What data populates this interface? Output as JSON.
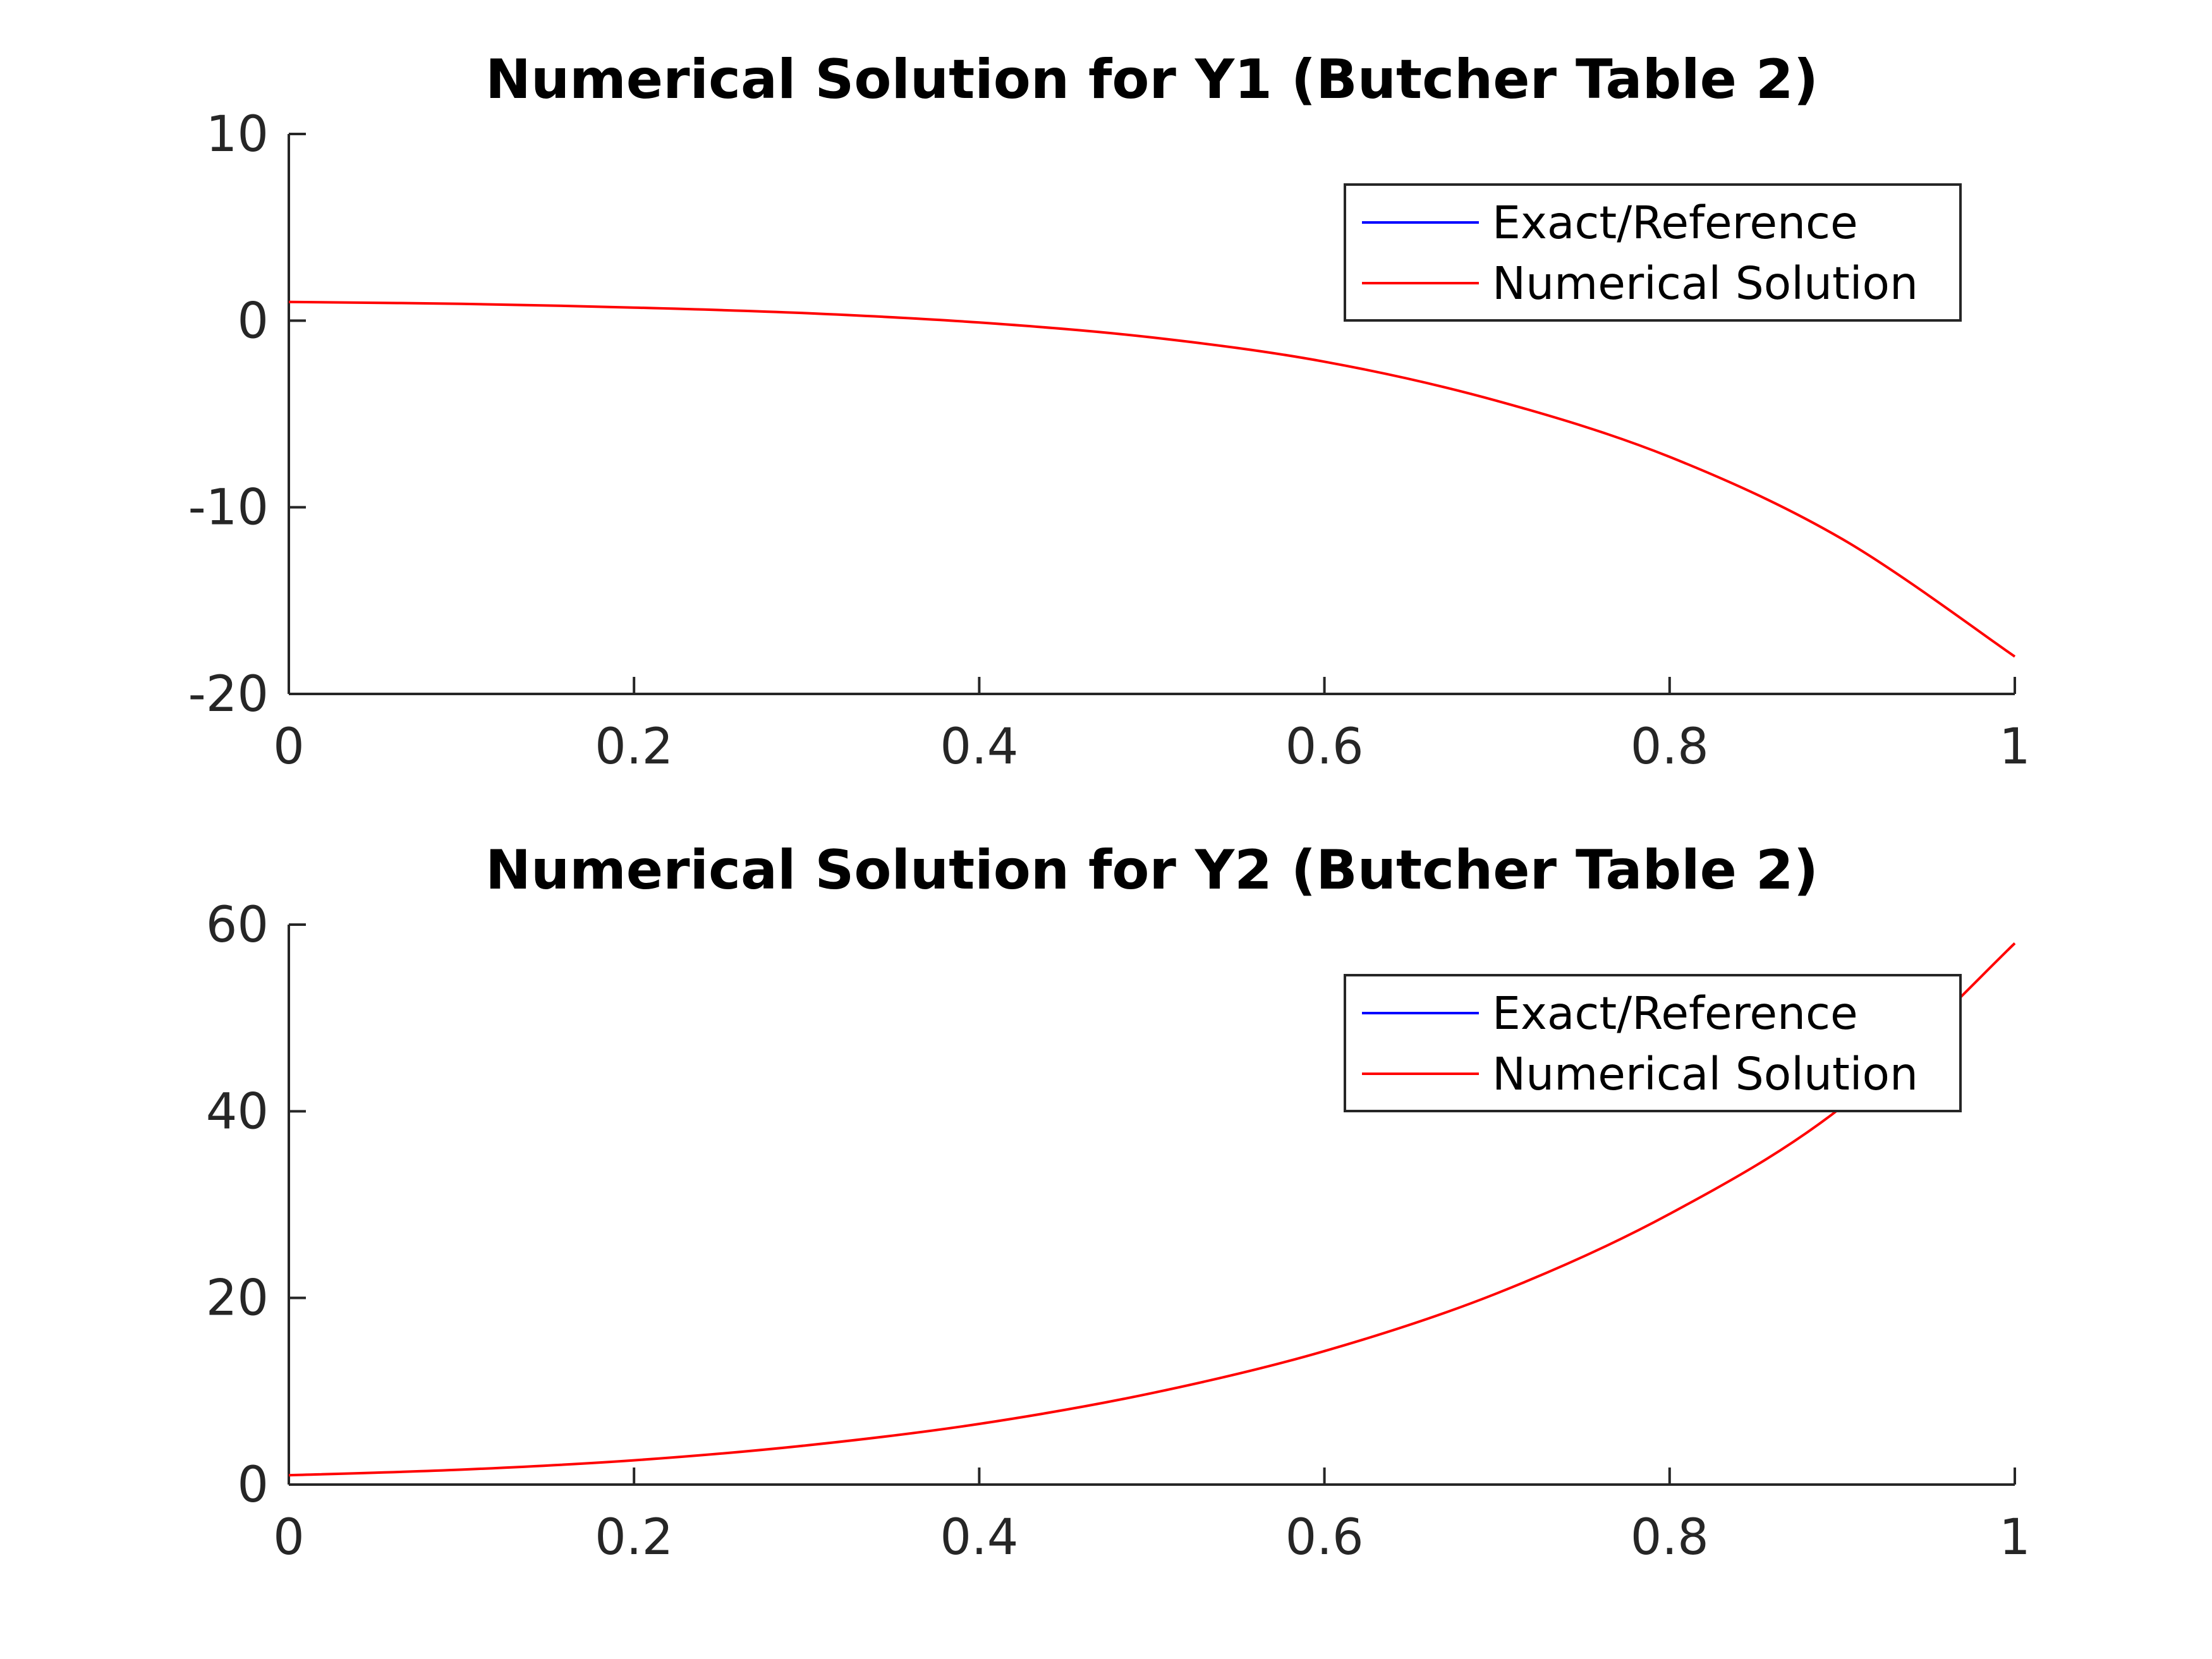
{
  "chart_data": [
    {
      "type": "line",
      "title": "Numerical Solution for Y1 (Butcher Table 2)",
      "xlabel": "",
      "ylabel": "",
      "xlim": [
        0,
        1
      ],
      "ylim": [
        -20,
        10
      ],
      "xticks": [
        "0",
        "0.2",
        "0.4",
        "0.6",
        "0.8",
        "1"
      ],
      "yticks": [
        "10",
        "0",
        "-10",
        "-20"
      ],
      "grid": false,
      "legend_position": "top-right",
      "series": [
        {
          "name": "Exact/Reference",
          "color": "#0000ff",
          "x": [],
          "y": []
        },
        {
          "name": "Numerical Solution",
          "color": "#ff0000",
          "x": [
            0,
            0.1,
            0.2,
            0.3,
            0.4,
            0.5,
            0.6,
            0.7,
            0.8,
            0.9,
            1.0
          ],
          "y": [
            1.0,
            0.9,
            0.7,
            0.4,
            -0.1,
            -0.9,
            -2.2,
            -4.3,
            -7.3,
            -11.7,
            -18.0
          ]
        }
      ]
    },
    {
      "type": "line",
      "title": "Numerical Solution for Y2 (Butcher Table 2)",
      "xlabel": "",
      "ylabel": "",
      "xlim": [
        0,
        1
      ],
      "ylim": [
        0,
        60
      ],
      "xticks": [
        "0",
        "0.2",
        "0.4",
        "0.6",
        "0.8",
        "1"
      ],
      "yticks": [
        "60",
        "40",
        "20",
        "0"
      ],
      "grid": false,
      "legend_position": "top-right",
      "series": [
        {
          "name": "Exact/Reference",
          "color": "#0000ff",
          "x": [],
          "y": []
        },
        {
          "name": "Numerical Solution",
          "color": "#ff0000",
          "x": [
            0,
            0.1,
            0.2,
            0.3,
            0.4,
            0.5,
            0.6,
            0.7,
            0.8,
            0.9,
            1.0
          ],
          "y": [
            1.0,
            1.6,
            2.6,
            4.2,
            6.5,
            9.8,
            14.3,
            20.5,
            29.0,
            40.5,
            58.0
          ]
        }
      ]
    }
  ]
}
